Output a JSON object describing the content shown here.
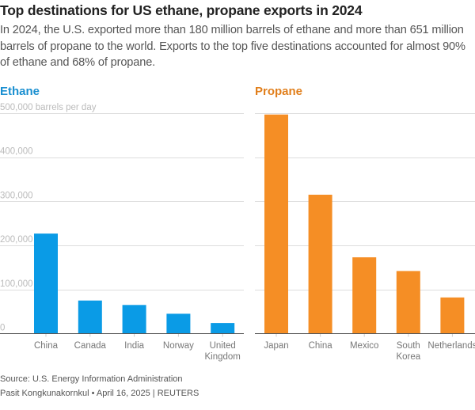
{
  "title": "Top destinations for US ethane, propane exports in 2024",
  "subtitle": "In 2024, the U.S. exported more than 180 million barrels of ethane and more than 651 million barrels of propane to the world. Exports to the top five destinations accounted for almost 90% of ethane and 68% of propane.",
  "footer": {
    "source": "Source: U.S. Energy Information Administration",
    "credit": "Pasit Kongkunakornkul • April 16, 2025 | REUTERS"
  },
  "colors": {
    "ethane": "#0a9be6",
    "propane": "#f58e25",
    "ethane_title": "#1a8fd0",
    "propane_title": "#e17f1c",
    "grid": "#dddddd",
    "axis": "#555555",
    "tick_text": "#bbbbbb",
    "category_text": "#777777"
  },
  "chart_data": [
    {
      "type": "bar",
      "title": "Ethane",
      "ylabel": "barrels per day",
      "unit_label": "500,000 barrels per day",
      "ylim": [
        0,
        500000
      ],
      "yticks": [
        0,
        100000,
        200000,
        300000,
        400000,
        500000
      ],
      "ytick_labels": [
        "0",
        "100,000",
        "200,000",
        "300,000",
        "400,000",
        "500,000 barrels per day"
      ],
      "grid": true,
      "categories": [
        [
          "China"
        ],
        [
          "Canada"
        ],
        [
          "India"
        ],
        [
          "Norway"
        ],
        [
          "United",
          "Kingdom"
        ]
      ],
      "values": [
        227000,
        75000,
        65000,
        45000,
        24000
      ]
    },
    {
      "type": "bar",
      "title": "Propane",
      "ylabel": "barrels per day",
      "ylim": [
        0,
        500000
      ],
      "yticks": [
        0,
        100000,
        200000,
        300000,
        400000,
        500000
      ],
      "ytick_labels": [],
      "grid": true,
      "categories": [
        [
          "Japan"
        ],
        [
          "China"
        ],
        [
          "Mexico"
        ],
        [
          "South",
          "Korea"
        ],
        [
          "Netherlands"
        ]
      ],
      "values": [
        497000,
        315000,
        173000,
        142000,
        82000
      ]
    }
  ]
}
